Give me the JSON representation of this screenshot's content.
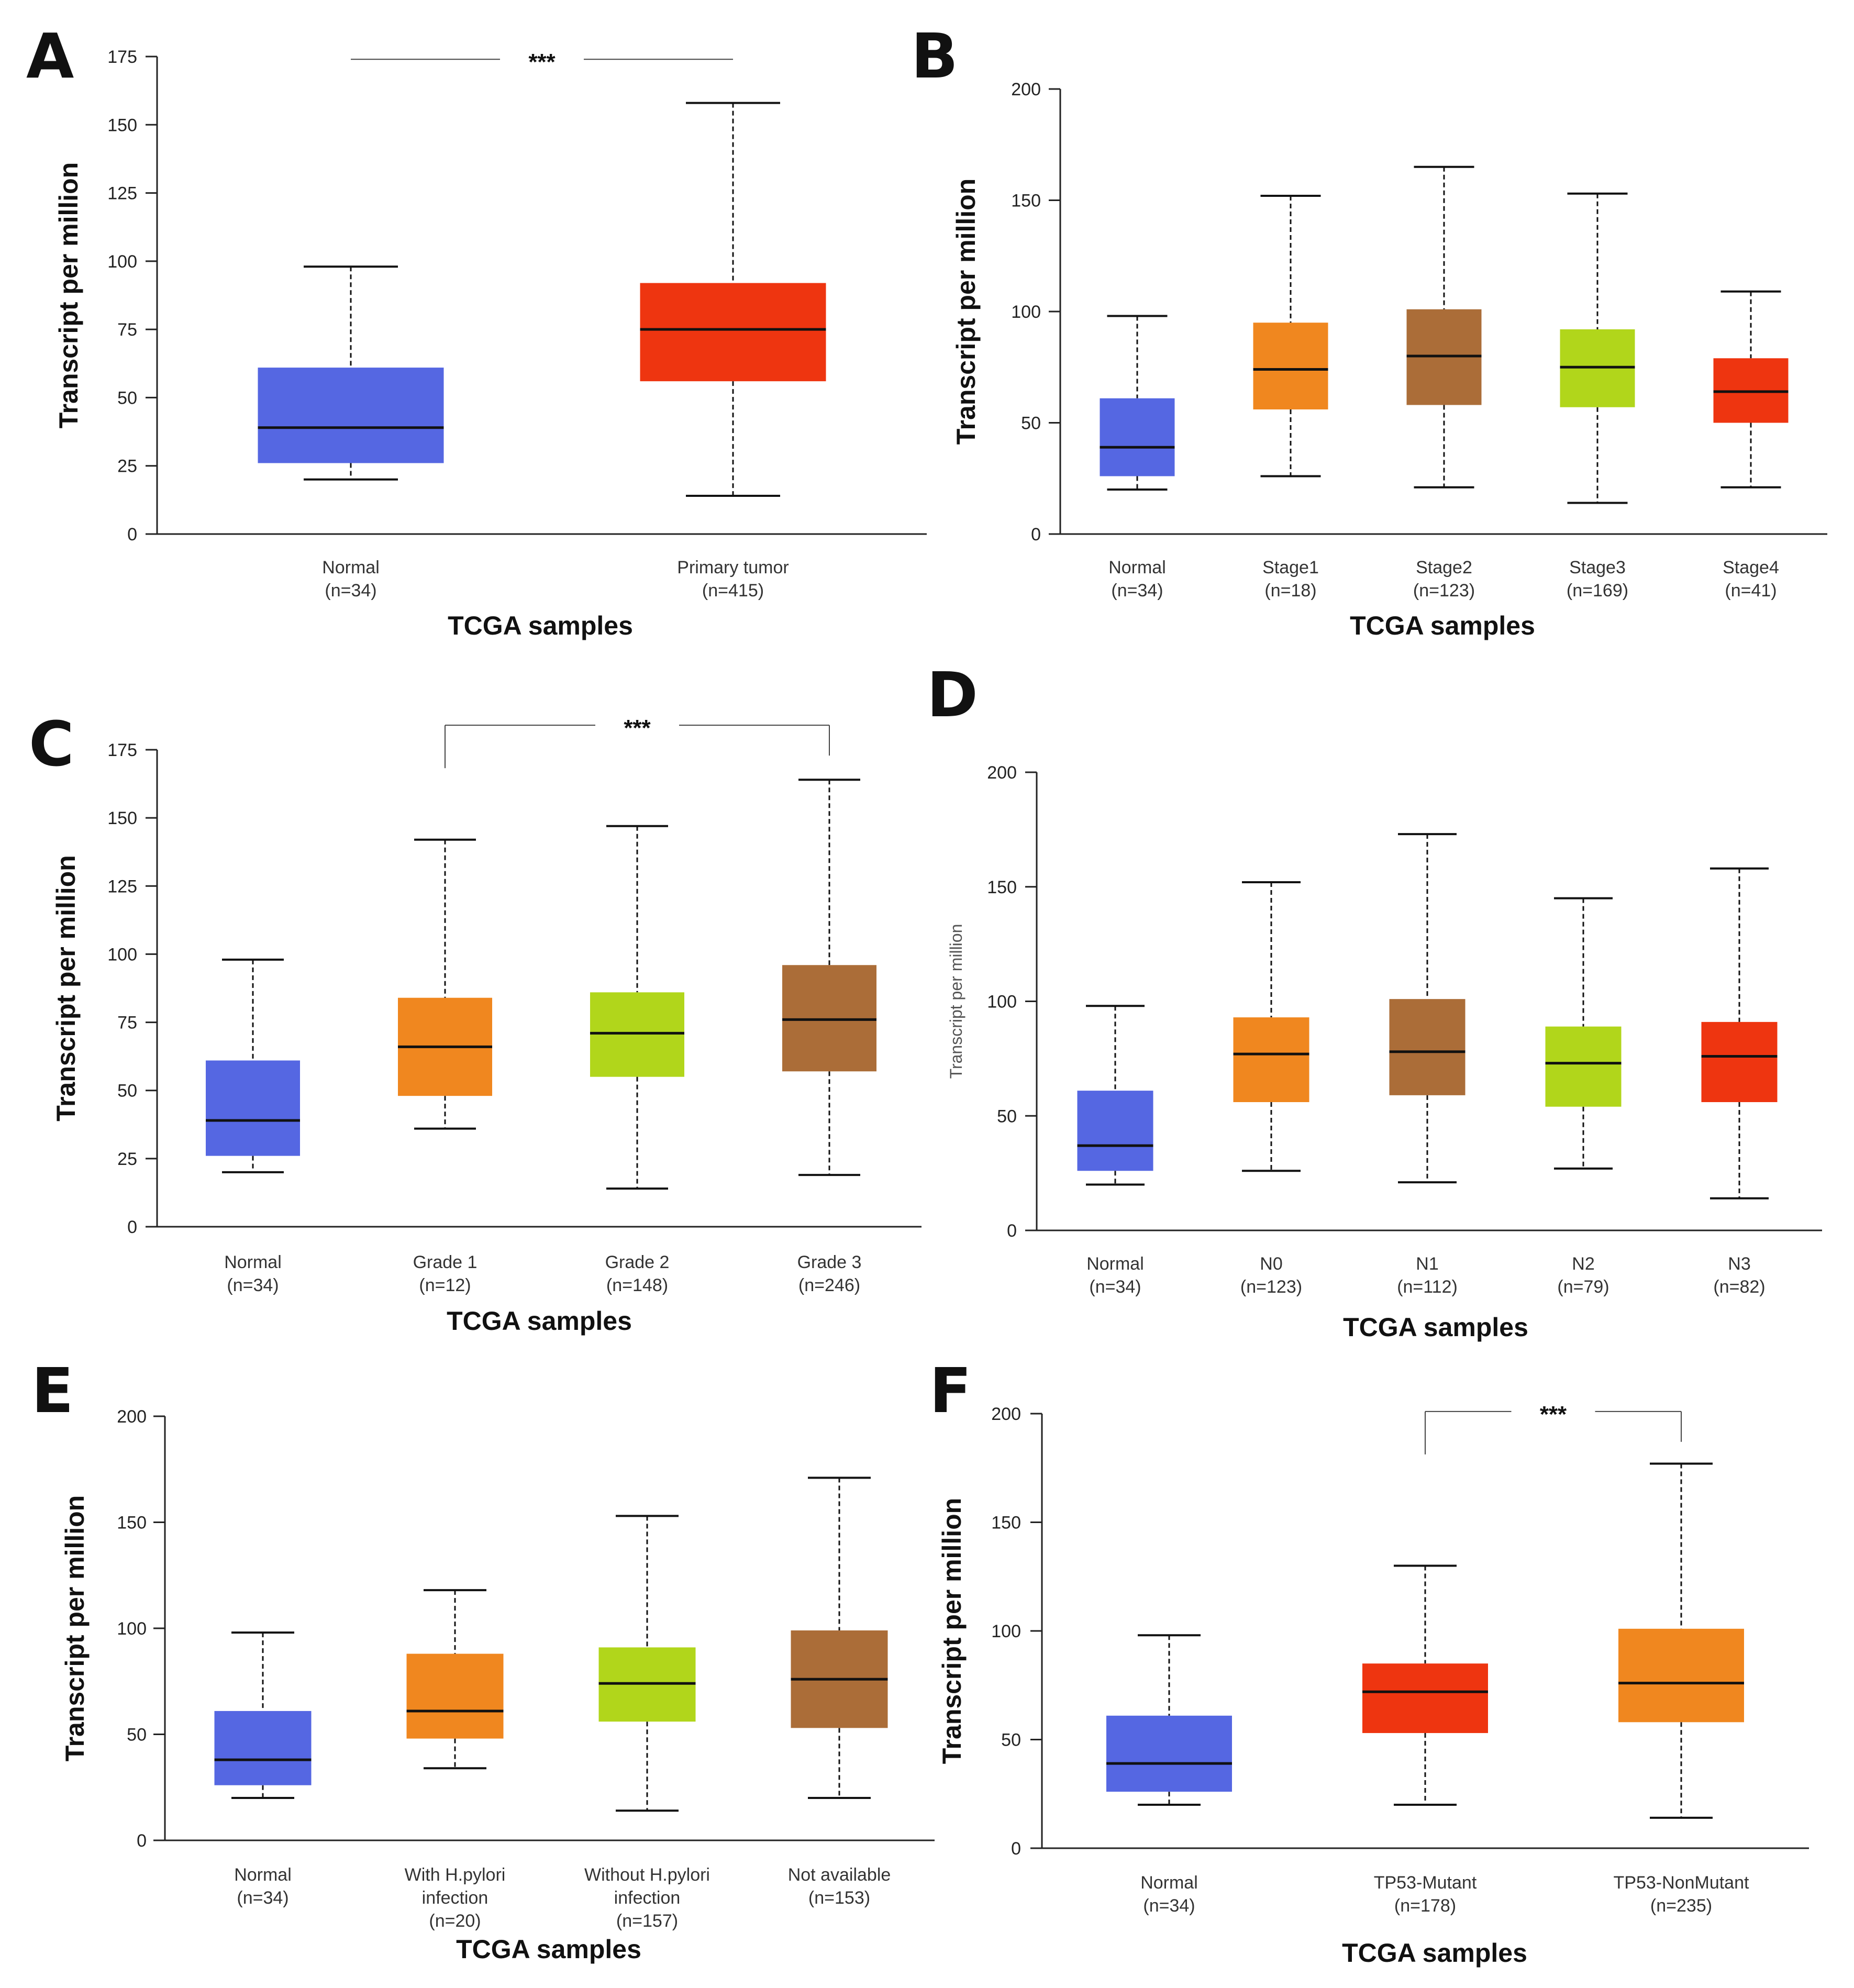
{
  "chart_data": [
    {
      "panel": "A",
      "type": "box",
      "ylabel": "Transcript per million",
      "xlabel": "TCGA samples",
      "ylim": [
        0,
        175
      ],
      "yticks": [
        0,
        25,
        50,
        75,
        100,
        125,
        150,
        175
      ],
      "categories": [
        {
          "lines": [
            "Normal",
            "(n=34)"
          ],
          "color": "#5567e2",
          "min": 20,
          "q1": 26,
          "median": 39,
          "q3": 61,
          "max": 98
        },
        {
          "lines": [
            "Primary tumor",
            "(n=415)"
          ],
          "color": "#ee3510",
          "min": 14,
          "q1": 56,
          "median": 75,
          "q3": 92,
          "max": 158
        }
      ],
      "significance": {
        "label": "***",
        "from": 0,
        "to": 1,
        "y": 174,
        "style": "line"
      }
    },
    {
      "panel": "B",
      "type": "box",
      "ylabel": "Transcript per million",
      "xlabel": "TCGA samples",
      "ylim": [
        0,
        200
      ],
      "yticks": [
        0,
        50,
        100,
        150,
        200
      ],
      "categories": [
        {
          "lines": [
            "Normal",
            "(n=34)"
          ],
          "color": "#5567e2",
          "min": 20,
          "q1": 26,
          "median": 39,
          "q3": 61,
          "max": 98
        },
        {
          "lines": [
            "Stage1",
            "(n=18)"
          ],
          "color": "#f0871f",
          "min": 26,
          "q1": 56,
          "median": 74,
          "q3": 95,
          "max": 152
        },
        {
          "lines": [
            "Stage2",
            "(n=123)"
          ],
          "color": "#ab6d38",
          "min": 21,
          "q1": 58,
          "median": 80,
          "q3": 101,
          "max": 165
        },
        {
          "lines": [
            "Stage3",
            "(n=169)"
          ],
          "color": "#b1d61b",
          "min": 14,
          "q1": 57,
          "median": 75,
          "q3": 92,
          "max": 153
        },
        {
          "lines": [
            "Stage4",
            "(n=41)"
          ],
          "color": "#ee3510",
          "min": 21,
          "q1": 50,
          "median": 64,
          "q3": 79,
          "max": 109
        }
      ]
    },
    {
      "panel": "C",
      "type": "box",
      "ylabel": "Transcript per million",
      "xlabel": "TCGA samples",
      "ylim": [
        0,
        175
      ],
      "yticks": [
        0,
        25,
        50,
        75,
        100,
        125,
        150,
        175
      ],
      "categories": [
        {
          "lines": [
            "Normal",
            "(n=34)"
          ],
          "color": "#5567e2",
          "min": 20,
          "q1": 26,
          "median": 39,
          "q3": 61,
          "max": 98
        },
        {
          "lines": [
            "Grade 1",
            "(n=12)"
          ],
          "color": "#f0871f",
          "min": 36,
          "q1": 48,
          "median": 66,
          "q3": 84,
          "max": 142
        },
        {
          "lines": [
            "Grade 2",
            "(n=148)"
          ],
          "color": "#b1d61b",
          "min": 14,
          "q1": 55,
          "median": 71,
          "q3": 86,
          "max": 147
        },
        {
          "lines": [
            "Grade 3",
            "(n=246)"
          ],
          "color": "#ab6d38",
          "min": 19,
          "q1": 57,
          "median": 76,
          "q3": 96,
          "max": 164
        }
      ],
      "significance": {
        "label": "***",
        "from": 1,
        "to": 3,
        "y": 184,
        "style": "bracket"
      }
    },
    {
      "panel": "D",
      "type": "box",
      "ylabel": "Transcript per million",
      "xlabel": "TCGA samples",
      "ylim": [
        0,
        200
      ],
      "yticks": [
        0,
        50,
        100,
        150,
        200
      ],
      "categories": [
        {
          "lines": [
            "Normal",
            "(n=34)"
          ],
          "color": "#5567e2",
          "min": 20,
          "q1": 26,
          "median": 37,
          "q3": 61,
          "max": 98
        },
        {
          "lines": [
            "N0",
            "(n=123)"
          ],
          "color": "#f0871f",
          "min": 26,
          "q1": 56,
          "median": 77,
          "q3": 93,
          "max": 152
        },
        {
          "lines": [
            "N1",
            "(n=112)"
          ],
          "color": "#ab6d38",
          "min": 21,
          "q1": 59,
          "median": 78,
          "q3": 101,
          "max": 173
        },
        {
          "lines": [
            "N2",
            "(n=79)"
          ],
          "color": "#b1d61b",
          "min": 27,
          "q1": 54,
          "median": 73,
          "q3": 89,
          "max": 145
        },
        {
          "lines": [
            "N3",
            "(n=82)"
          ],
          "color": "#ee3510",
          "min": 14,
          "q1": 56,
          "median": 76,
          "q3": 91,
          "max": 158
        }
      ]
    },
    {
      "panel": "E",
      "type": "box",
      "ylabel": "Transcript per million",
      "xlabel": "TCGA samples",
      "ylim": [
        0,
        200
      ],
      "yticks": [
        0,
        50,
        100,
        150,
        200
      ],
      "categories": [
        {
          "lines": [
            "Normal",
            "(n=34)"
          ],
          "color": "#5567e2",
          "min": 20,
          "q1": 26,
          "median": 38,
          "q3": 61,
          "max": 98
        },
        {
          "lines": [
            "With H.pylori",
            "infection",
            "(n=20)"
          ],
          "color": "#f0871f",
          "min": 34,
          "q1": 48,
          "median": 61,
          "q3": 88,
          "max": 118
        },
        {
          "lines": [
            "Without H.pylori",
            "infection",
            "(n=157)"
          ],
          "color": "#b1d61b",
          "min": 14,
          "q1": 56,
          "median": 74,
          "q3": 91,
          "max": 153
        },
        {
          "lines": [
            "Not available",
            "(n=153)"
          ],
          "color": "#ab6d38",
          "min": 20,
          "q1": 53,
          "median": 76,
          "q3": 99,
          "max": 171
        }
      ]
    },
    {
      "panel": "F",
      "type": "box",
      "ylabel": "Transcript per million",
      "xlabel": "TCGA samples",
      "ylim": [
        0,
        200
      ],
      "yticks": [
        0,
        50,
        100,
        150,
        200
      ],
      "categories": [
        {
          "lines": [
            "Normal",
            "(n=34)"
          ],
          "color": "#5567e2",
          "min": 20,
          "q1": 26,
          "median": 39,
          "q3": 61,
          "max": 98
        },
        {
          "lines": [
            "TP53-Mutant",
            "(n=178)"
          ],
          "color": "#ee3510",
          "min": 20,
          "q1": 53,
          "median": 72,
          "q3": 85,
          "max": 130
        },
        {
          "lines": [
            "TP53-NonMutant",
            "(n=235)"
          ],
          "color": "#f0871f",
          "min": 14,
          "q1": 58,
          "median": 76,
          "q3": 101,
          "max": 177
        }
      ],
      "significance": {
        "label": "***",
        "from": 1,
        "to": 2,
        "y": 201,
        "style": "bracket"
      }
    }
  ]
}
